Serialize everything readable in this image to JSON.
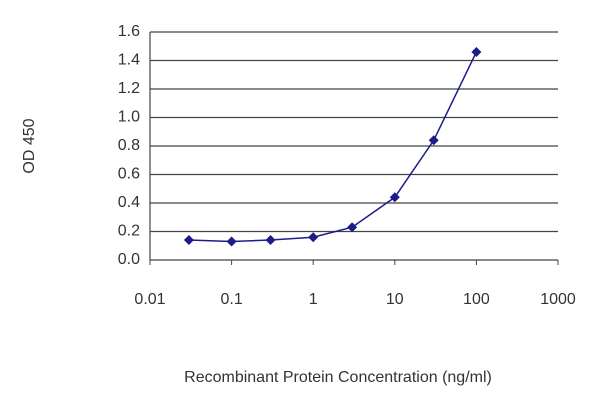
{
  "chart_data": {
    "type": "scatter",
    "xscale": "log",
    "grid": true,
    "xlabel": "Recombinant Protein Concentration (ng/ml)",
    "ylabel": "OD 450",
    "x": [
      0.03,
      0.1,
      0.3,
      1,
      3,
      10,
      30,
      100
    ],
    "series": [
      {
        "color": "#1c1c8a",
        "values": [
          0.14,
          0.13,
          0.14,
          0.16,
          0.23,
          0.44,
          0.84,
          1.46
        ]
      }
    ],
    "xlim": [
      0.01,
      1000
    ],
    "xticks": [
      0.01,
      0.1,
      1,
      10,
      100,
      1000
    ],
    "ylim": [
      0,
      1.6
    ],
    "yticks": [
      {
        "value": 0,
        "label": "0.0"
      },
      0.2,
      0.4,
      0.6,
      0.8,
      {
        "value": 1,
        "label": "1.0"
      },
      1.2,
      1.4,
      1.6
    ]
  }
}
